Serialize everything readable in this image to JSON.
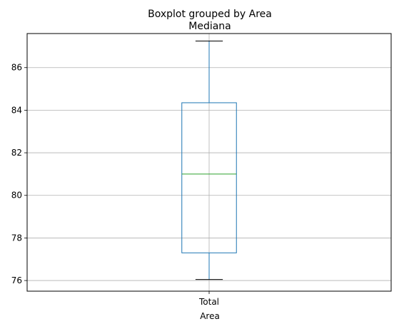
{
  "chart_data": {
    "type": "boxplot",
    "suptitle": "Boxplot grouped by Area",
    "title": "Mediana",
    "xlabel": "Area",
    "ylabel": "",
    "categories": [
      "Total"
    ],
    "boxes": [
      {
        "category": "Total",
        "whisker_low": 76.05,
        "q1": 77.3,
        "median": 81.0,
        "q3": 84.35,
        "whisker_high": 87.25
      }
    ],
    "ylim": [
      75.5,
      87.6
    ],
    "yticks": [
      76,
      78,
      80,
      82,
      84,
      86
    ],
    "grid": true,
    "colors": {
      "box": "#1f77b4",
      "median": "#2ca02c",
      "whisker_cap": "#000000",
      "grid": "#b0b0b0"
    }
  }
}
